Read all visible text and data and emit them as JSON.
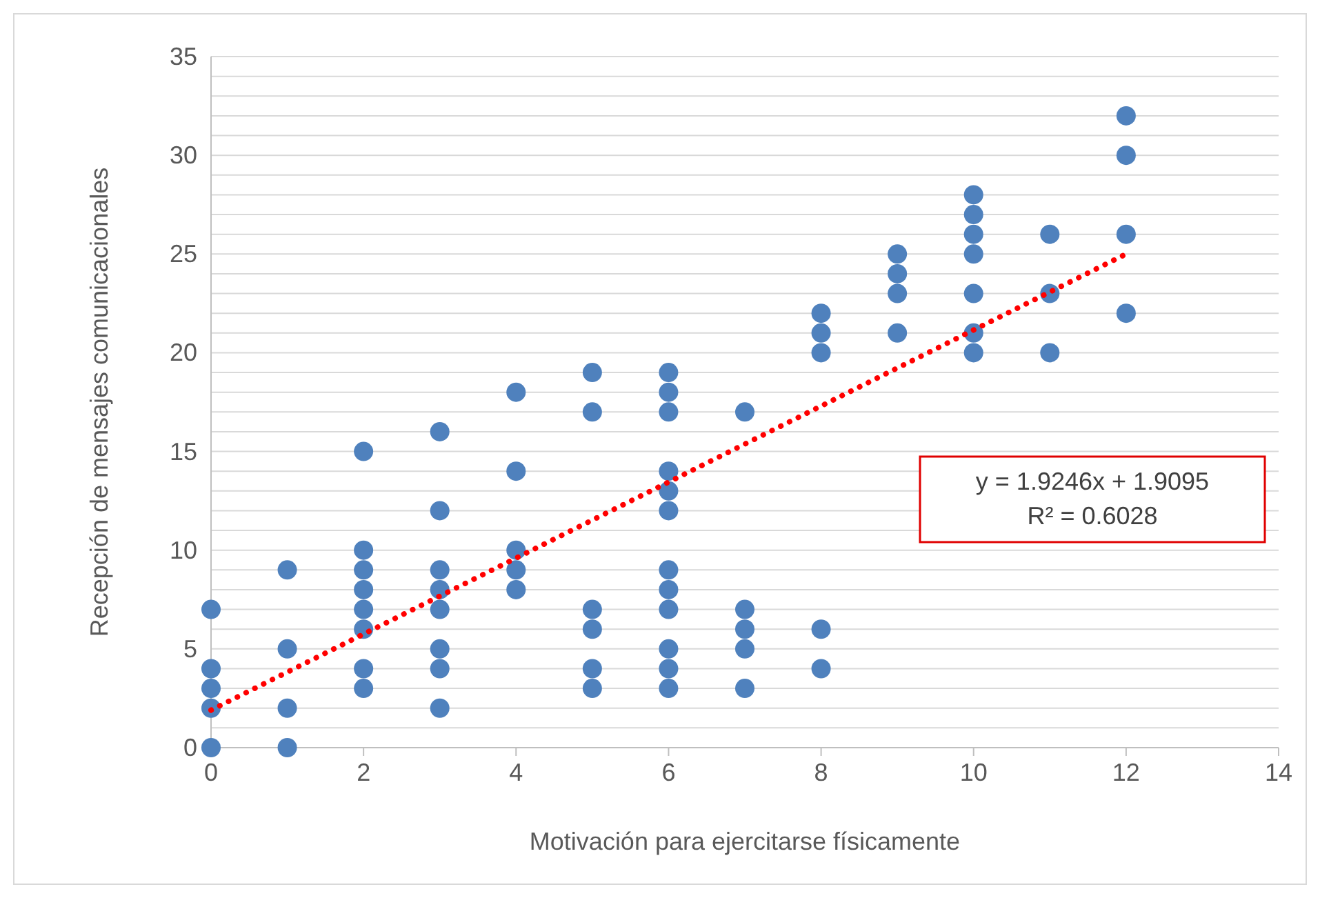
{
  "chart_data": {
    "type": "scatter",
    "xlabel": "Motivación para ejercitarse físicamente",
    "ylabel": "Recepción de mensajes comunicacionales",
    "xlim": [
      0,
      14
    ],
    "xticks": [
      0,
      2,
      4,
      6,
      8,
      10,
      12,
      14
    ],
    "ylim": [
      0,
      35
    ],
    "yticks": [
      0,
      {
        "value": 1,
        "label": null
      },
      {
        "value": 2,
        "label": null
      },
      {
        "value": 3,
        "label": null
      },
      {
        "value": 4,
        "label": null
      },
      5,
      {
        "value": 6,
        "label": null
      },
      {
        "value": 7,
        "label": null
      },
      {
        "value": 8,
        "label": null
      },
      {
        "value": 9,
        "label": null
      },
      10,
      {
        "value": 11,
        "label": null
      },
      {
        "value": 12,
        "label": null
      },
      {
        "value": 13,
        "label": null
      },
      {
        "value": 14,
        "label": null
      },
      15,
      {
        "value": 16,
        "label": null
      },
      {
        "value": 17,
        "label": null
      },
      {
        "value": 18,
        "label": null
      },
      {
        "value": 19,
        "label": null
      },
      20,
      {
        "value": 21,
        "label": null
      },
      {
        "value": 22,
        "label": null
      },
      {
        "value": 23,
        "label": null
      },
      {
        "value": 24,
        "label": null
      },
      25,
      {
        "value": 26,
        "label": null
      },
      {
        "value": 27,
        "label": null
      },
      {
        "value": 28,
        "label": null
      },
      {
        "value": 29,
        "label": null
      },
      30,
      {
        "value": 31,
        "label": null
      },
      {
        "value": 32,
        "label": null
      },
      {
        "value": 33,
        "label": null
      },
      {
        "value": 34,
        "label": null
      },
      35
    ],
    "grid": "y",
    "marker": "circle",
    "series": [
      {
        "color": "#4f81bd",
        "x": [
          0,
          0,
          0,
          0,
          0,
          1,
          1,
          1,
          1,
          2,
          2,
          2,
          2,
          2,
          2,
          2,
          2,
          3,
          3,
          3,
          3,
          3,
          3,
          3,
          3,
          4,
          4,
          4,
          4,
          4,
          5,
          5,
          5,
          5,
          5,
          5,
          6,
          6,
          6,
          6,
          6,
          6,
          6,
          6,
          6,
          6,
          6,
          6,
          7,
          7,
          7,
          7,
          7,
          8,
          8,
          8,
          8,
          8,
          9,
          9,
          9,
          9,
          10,
          10,
          10,
          10,
          10,
          10,
          10,
          11,
          11,
          11,
          12,
          12,
          12,
          12
        ],
        "values": [
          7,
          4,
          3,
          2,
          0,
          9,
          5,
          2,
          0,
          15,
          10,
          9,
          8,
          7,
          6,
          4,
          3,
          16,
          12,
          9,
          8,
          7,
          5,
          4,
          2,
          18,
          14,
          10,
          9,
          8,
          19,
          17,
          7,
          6,
          4,
          3,
          19,
          18,
          17,
          14,
          13,
          12,
          9,
          8,
          7,
          5,
          4,
          3,
          17,
          7,
          6,
          5,
          3,
          22,
          21,
          20,
          6,
          4,
          25,
          24,
          23,
          21,
          28,
          27,
          26,
          25,
          23,
          21,
          20,
          26,
          23,
          20,
          32,
          30,
          26,
          22
        ]
      },
      {
        "type": "line",
        "color": "#ff0000",
        "line_style": "dotted",
        "marker": "none",
        "x": [
          0,
          12
        ],
        "values": [
          1.9,
          25.0
        ]
      }
    ],
    "annotations": [
      "y = 1.9246x + 1.9095",
      "R² = 0.6028"
    ]
  }
}
